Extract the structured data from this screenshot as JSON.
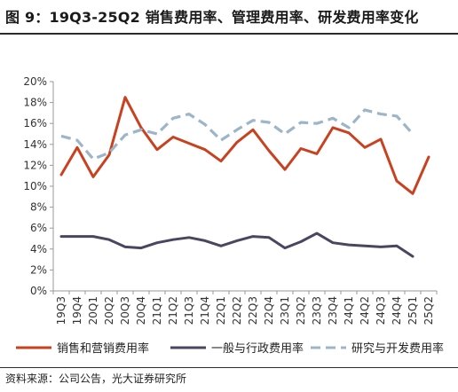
{
  "figure_title": "图 9：19Q3-25Q2 销售费用率、管理费用率、研发费用率变化",
  "source": "资料来源：公司公告，光大证券研究所",
  "chart_data": {
    "type": "line",
    "categories": [
      "19Q3",
      "19Q4",
      "20Q1",
      "20Q2",
      "20Q3",
      "20Q4",
      "21Q1",
      "21Q2",
      "21Q3",
      "21Q4",
      "22Q1",
      "22Q2",
      "22Q3",
      "22Q4",
      "23Q1",
      "23Q2",
      "23Q3",
      "23Q4",
      "24Q1",
      "24Q2",
      "24Q3",
      "24Q4",
      "25Q1",
      "25Q2"
    ],
    "ylim": [
      0,
      20
    ],
    "yticks": [
      "0%",
      "2%",
      "4%",
      "6%",
      "8%",
      "10%",
      "12%",
      "14%",
      "16%",
      "18%",
      "20%"
    ],
    "grid": false,
    "legend_position": "bottom",
    "series": [
      {
        "name": "销售和营销费用率",
        "color": "#c9411f",
        "dash": "solid",
        "values": [
          11.1,
          13.7,
          10.9,
          13.0,
          18.5,
          15.6,
          13.5,
          14.7,
          14.1,
          13.5,
          12.4,
          14.2,
          15.4,
          13.4,
          11.6,
          13.6,
          13.1,
          15.6,
          15.1,
          13.7,
          14.5,
          10.5,
          9.3,
          12.8
        ]
      },
      {
        "name": "一般与行政费用率",
        "color": "#4b4660",
        "dash": "solid",
        "values": [
          5.2,
          5.2,
          5.2,
          4.9,
          4.2,
          4.1,
          4.6,
          4.9,
          5.1,
          4.8,
          4.3,
          4.8,
          5.2,
          5.1,
          4.1,
          4.7,
          5.5,
          4.6,
          4.4,
          4.3,
          4.2,
          4.3,
          3.3,
          null
        ]
      },
      {
        "name": "研究与开发费用率",
        "color": "#9db5c9",
        "dash": "dashed",
        "values": [
          14.8,
          14.4,
          12.6,
          13.2,
          14.9,
          15.4,
          15.0,
          16.5,
          16.9,
          15.9,
          14.4,
          15.4,
          16.3,
          16.1,
          15.0,
          16.1,
          16.0,
          16.5,
          15.6,
          17.3,
          16.9,
          16.7,
          15.0,
          null
        ]
      }
    ]
  }
}
